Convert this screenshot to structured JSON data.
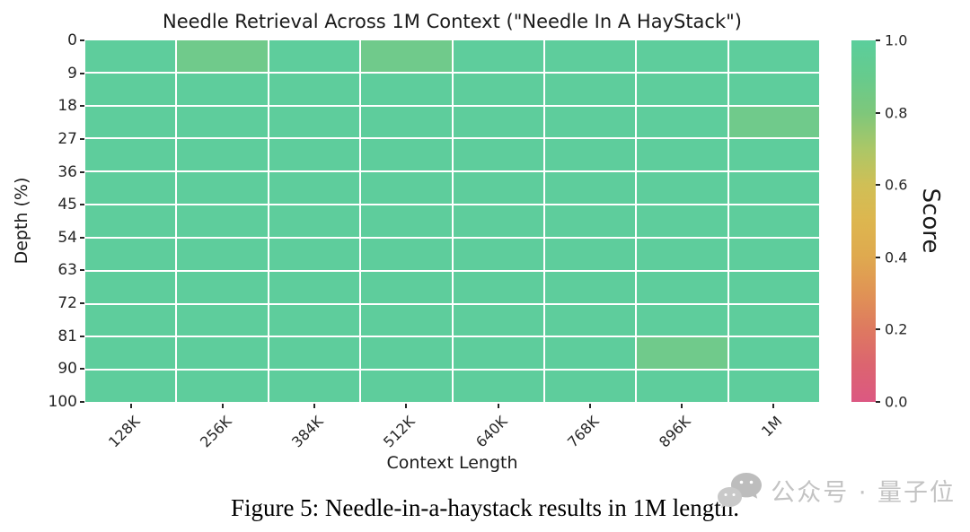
{
  "title": "Needle Retrieval Across 1M Context (\"Needle In A HayStack\")",
  "caption": "Figure 5: Needle-in-a-haystack results in 1M length.",
  "watermark": {
    "icon": "wechat-icon",
    "text": "公众号 · 量子位",
    "color": "#c3c3c3"
  },
  "chart_data": {
    "type": "heatmap",
    "title": "Needle Retrieval Across 1M Context (\"Needle In A HayStack\")",
    "xlabel": "Context Length",
    "ylabel": "Depth (%)",
    "x_categories": [
      "128K",
      "256K",
      "384K",
      "512K",
      "640K",
      "768K",
      "896K",
      "1M"
    ],
    "y_ticks": [
      "0",
      "9",
      "18",
      "27",
      "36",
      "45",
      "54",
      "63",
      "72",
      "81",
      "90",
      "100"
    ],
    "grid": true,
    "rows": [
      {
        "depth": 0,
        "values": [
          1.0,
          0.95,
          1.0,
          0.95,
          1.0,
          1.0,
          1.0,
          1.0
        ]
      },
      {
        "depth": 9,
        "values": [
          1.0,
          1.0,
          1.0,
          1.0,
          1.0,
          1.0,
          1.0,
          1.0
        ]
      },
      {
        "depth": 18,
        "values": [
          1.0,
          1.0,
          1.0,
          1.0,
          1.0,
          1.0,
          1.0,
          0.95
        ]
      },
      {
        "depth": 27,
        "values": [
          1.0,
          1.0,
          1.0,
          1.0,
          1.0,
          1.0,
          1.0,
          1.0
        ]
      },
      {
        "depth": 36,
        "values": [
          1.0,
          1.0,
          1.0,
          1.0,
          1.0,
          1.0,
          1.0,
          1.0
        ]
      },
      {
        "depth": 45,
        "values": [
          1.0,
          1.0,
          1.0,
          1.0,
          1.0,
          1.0,
          1.0,
          1.0
        ]
      },
      {
        "depth": 54,
        "values": [
          1.0,
          1.0,
          1.0,
          1.0,
          1.0,
          1.0,
          1.0,
          1.0
        ]
      },
      {
        "depth": 63,
        "values": [
          1.0,
          1.0,
          1.0,
          1.0,
          1.0,
          1.0,
          1.0,
          1.0
        ]
      },
      {
        "depth": 72,
        "values": [
          1.0,
          1.0,
          1.0,
          1.0,
          1.0,
          1.0,
          1.0,
          1.0
        ]
      },
      {
        "depth": 81,
        "values": [
          1.0,
          1.0,
          1.0,
          1.0,
          1.0,
          1.0,
          0.95,
          1.0
        ]
      },
      {
        "depth": 90,
        "values": [
          1.0,
          1.0,
          1.0,
          1.0,
          1.0,
          1.0,
          1.0,
          1.0
        ]
      }
    ],
    "colorbar": {
      "label": "Score",
      "ticks": [
        "1.0",
        "0.8",
        "0.6",
        "0.4",
        "0.2",
        "0.0"
      ],
      "min": 0.0,
      "max": 1.0
    },
    "colors": {
      "full_score": "#5ecd9c",
      "partial_score": "#70ca8b",
      "grid_line": "#ffffff",
      "gradient_bottom_to_top": [
        "#dc5882",
        "#dc6470",
        "#de7960",
        "#e09355",
        "#dfa94f",
        "#ddb64f",
        "#d0bf56",
        "#abc767",
        "#7ec77b",
        "#66cb8d",
        "#5bce9c"
      ]
    }
  }
}
